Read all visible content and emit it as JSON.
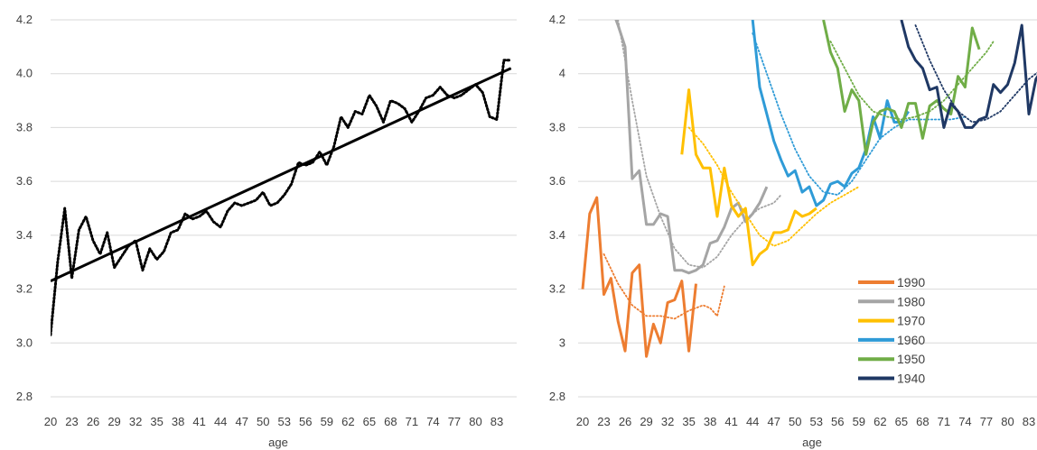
{
  "chart_data": [
    {
      "type": "line",
      "xlabel": "age",
      "ylabel": "",
      "ylim": [
        2.8,
        4.2
      ],
      "yticks": [
        "2.8",
        "3.0",
        "3.2",
        "3.4",
        "3.6",
        "3.8",
        "4.0",
        "4.2"
      ],
      "xticks": [
        "20",
        "23",
        "26",
        "29",
        "32",
        "35",
        "38",
        "41",
        "44",
        "47",
        "50",
        "53",
        "56",
        "59",
        "62",
        "65",
        "68",
        "71",
        "74",
        "77",
        "80",
        "83"
      ],
      "grid": "horizontal",
      "x_range": [
        20,
        85
      ],
      "series": [
        {
          "style": "dotted",
          "color": "#000000",
          "x": [
            20,
            21,
            22,
            23,
            24,
            25,
            26,
            27,
            28,
            29,
            30,
            31,
            32,
            33,
            34,
            35,
            36,
            37,
            38,
            39,
            40,
            41,
            42,
            43,
            44,
            45,
            46,
            47,
            48,
            49,
            50,
            51,
            52,
            53,
            54,
            55,
            56,
            57,
            58,
            59,
            60,
            61,
            62,
            63,
            64,
            65,
            66,
            67,
            68,
            69,
            70,
            71,
            72,
            73,
            74,
            75,
            76,
            77,
            78,
            79,
            80,
            81,
            82,
            83,
            84,
            85
          ],
          "values": [
            3.03,
            3.3,
            3.5,
            3.24,
            3.42,
            3.47,
            3.38,
            3.33,
            3.41,
            3.28,
            3.32,
            3.36,
            3.38,
            3.27,
            3.35,
            3.31,
            3.34,
            3.41,
            3.42,
            3.48,
            3.46,
            3.47,
            3.49,
            3.45,
            3.43,
            3.49,
            3.52,
            3.51,
            3.52,
            3.53,
            3.56,
            3.51,
            3.52,
            3.55,
            3.59,
            3.67,
            3.66,
            3.67,
            3.71,
            3.66,
            3.73,
            3.84,
            3.8,
            3.86,
            3.85,
            3.92,
            3.88,
            3.82,
            3.9,
            3.89,
            3.87,
            3.82,
            3.86,
            3.91,
            3.92,
            3.95,
            3.92,
            3.91,
            3.92,
            3.94,
            3.96,
            3.93,
            3.84,
            3.83,
            4.05,
            4.05
          ]
        },
        {
          "style": "solid",
          "color": "#000000",
          "x": [
            20,
            85
          ],
          "values": [
            3.23,
            4.02
          ]
        }
      ]
    },
    {
      "type": "line",
      "xlabel": "age",
      "ylabel": "",
      "ylim": [
        2.8,
        4.2
      ],
      "yticks": [
        "2.8",
        "3",
        "3.2",
        "3.4",
        "3.6",
        "3.8",
        "4",
        "4.2"
      ],
      "xticks": [
        "20",
        "23",
        "26",
        "29",
        "32",
        "35",
        "38",
        "41",
        "44",
        "47",
        "50",
        "53",
        "56",
        "59",
        "62",
        "65",
        "68",
        "71",
        "74",
        "77",
        "80",
        "83"
      ],
      "grid": "horizontal",
      "x_range": [
        20,
        85
      ],
      "legend_position": "bottom-right",
      "series": [
        {
          "name": "1990",
          "color": "#ED7D31",
          "x": [
            20,
            21,
            22,
            23,
            24,
            25,
            26,
            27,
            28,
            29,
            30,
            31,
            32,
            33,
            34,
            35,
            36
          ],
          "values": [
            3.2,
            3.48,
            3.54,
            3.18,
            3.24,
            3.08,
            2.97,
            3.26,
            3.29,
            2.95,
            3.07,
            3.0,
            3.15,
            3.16,
            3.23,
            2.97,
            3.22
          ],
          "trend_x": [
            23,
            25,
            27,
            29,
            31,
            33,
            35,
            37,
            38,
            39,
            40
          ],
          "trend": [
            3.33,
            3.22,
            3.14,
            3.1,
            3.1,
            3.09,
            3.12,
            3.14,
            3.13,
            3.1,
            3.21
          ]
        },
        {
          "name": "1980",
          "color": "#A5A5A5",
          "x": [
            24,
            25,
            26,
            27,
            28,
            29,
            30,
            31,
            32,
            33,
            34,
            35,
            36,
            37,
            38,
            39,
            40,
            41,
            42,
            43,
            44,
            45,
            46
          ],
          "values": [
            4.25,
            4.18,
            4.1,
            3.61,
            3.64,
            3.44,
            3.44,
            3.48,
            3.47,
            3.27,
            3.27,
            3.26,
            3.27,
            3.29,
            3.37,
            3.38,
            3.43,
            3.5,
            3.52,
            3.45,
            3.48,
            3.52,
            3.58
          ],
          "trend_x": [
            25,
            27,
            29,
            31,
            33,
            35,
            37,
            39,
            41,
            43,
            45,
            47,
            48
          ],
          "trend": [
            4.2,
            3.9,
            3.62,
            3.47,
            3.35,
            3.29,
            3.28,
            3.32,
            3.4,
            3.46,
            3.5,
            3.52,
            3.55
          ]
        },
        {
          "name": "1970",
          "color": "#FFC000",
          "x": [
            34,
            35,
            36,
            37,
            38,
            39,
            40,
            41,
            42,
            43,
            44,
            45,
            46,
            47,
            48,
            49,
            50,
            51,
            52,
            53
          ],
          "values": [
            3.7,
            3.94,
            3.7,
            3.65,
            3.65,
            3.47,
            3.65,
            3.51,
            3.47,
            3.5,
            3.29,
            3.33,
            3.35,
            3.41,
            3.41,
            3.42,
            3.49,
            3.47,
            3.48,
            3.5
          ],
          "trend_x": [
            35,
            37,
            39,
            41,
            43,
            45,
            47,
            49,
            51,
            53,
            55,
            57,
            59
          ],
          "trend": [
            3.8,
            3.74,
            3.66,
            3.56,
            3.48,
            3.4,
            3.36,
            3.38,
            3.43,
            3.48,
            3.52,
            3.55,
            3.58
          ]
        },
        {
          "name": "1960",
          "color": "#2F9BD7",
          "x": [
            44,
            45,
            46,
            47,
            48,
            49,
            50,
            51,
            52,
            53,
            54,
            55,
            56,
            57,
            58,
            59,
            60,
            61,
            62,
            63,
            64,
            65,
            66
          ],
          "values": [
            4.2,
            3.95,
            3.85,
            3.75,
            3.68,
            3.62,
            3.64,
            3.56,
            3.58,
            3.51,
            3.53,
            3.59,
            3.6,
            3.58,
            3.63,
            3.65,
            3.72,
            3.84,
            3.76,
            3.9,
            3.82,
            3.82,
            3.86
          ],
          "trend_x": [
            44,
            46,
            48,
            50,
            52,
            54,
            56,
            58,
            60,
            62,
            64,
            66,
            68,
            70,
            72,
            74
          ],
          "trend": [
            4.15,
            4.0,
            3.85,
            3.72,
            3.62,
            3.56,
            3.55,
            3.6,
            3.68,
            3.76,
            3.8,
            3.83,
            3.83,
            3.83,
            3.83,
            3.84
          ]
        },
        {
          "name": "1950",
          "color": "#70AD47",
          "x": [
            54,
            55,
            56,
            57,
            58,
            59,
            60,
            61,
            62,
            63,
            64,
            65,
            66,
            67,
            68,
            69,
            70,
            71,
            72,
            73,
            74,
            75,
            76
          ],
          "values": [
            4.2,
            4.08,
            4.02,
            3.86,
            3.94,
            3.9,
            3.7,
            3.82,
            3.86,
            3.87,
            3.86,
            3.8,
            3.89,
            3.89,
            3.76,
            3.88,
            3.9,
            3.87,
            3.85,
            3.99,
            3.95,
            4.17,
            4.09
          ],
          "trend_x": [
            55,
            57,
            59,
            61,
            63,
            65,
            67,
            69,
            71,
            73,
            75,
            77,
            78
          ],
          "trend": [
            4.12,
            4.02,
            3.92,
            3.86,
            3.84,
            3.83,
            3.84,
            3.86,
            3.9,
            3.96,
            4.02,
            4.08,
            4.12
          ]
        },
        {
          "name": "1940",
          "color": "#1F3864",
          "x": [
            65,
            66,
            67,
            68,
            69,
            70,
            71,
            72,
            73,
            74,
            75,
            76,
            77,
            78,
            79,
            80,
            81,
            82,
            83,
            84,
            85
          ],
          "values": [
            4.2,
            4.1,
            4.05,
            4.02,
            3.94,
            3.95,
            3.8,
            3.89,
            3.86,
            3.8,
            3.8,
            3.83,
            3.84,
            3.96,
            3.93,
            3.96,
            4.04,
            4.18,
            3.85,
            3.98,
            4.02
          ],
          "trend_x": [
            67,
            69,
            71,
            73,
            75,
            77,
            79,
            81,
            83,
            85
          ],
          "trend": [
            4.18,
            4.05,
            3.94,
            3.86,
            3.82,
            3.83,
            3.86,
            3.92,
            3.98,
            4.02
          ]
        }
      ]
    }
  ]
}
